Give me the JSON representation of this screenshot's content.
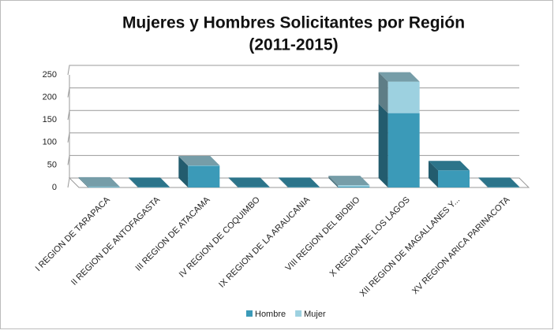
{
  "chart_data": {
    "type": "bar3d_stacked",
    "title": "Mujeres y Hombres Solicitantes por Región",
    "subtitle": "(2011-2015)",
    "categories": [
      "I REGION DE TARAPACA",
      "II REGION DE ANTOFAGASTA",
      "III REGION DE ATACAMA",
      "IV REGION DE COQUIMBO",
      "IX REGION DE LA ARAUCANIA",
      "VIII REGION DEL BIOBIO",
      "X REGION DE LOS LAGOS",
      "XII REGION DE MAGALLANES Y...",
      "XV REGION ARICA PARINACOTA"
    ],
    "series": [
      {
        "name": "Hombre",
        "color": "#3b9ab8",
        "values": [
          1,
          1,
          48,
          1,
          1,
          2,
          165,
          38,
          1
        ]
      },
      {
        "name": "Mujer",
        "color": "#9dd1e0",
        "values": [
          1,
          0,
          1,
          0,
          0,
          3,
          70,
          0,
          0
        ]
      }
    ],
    "ylim": [
      0,
      250
    ],
    "yticks": [
      0,
      50,
      100,
      150,
      200,
      250
    ],
    "grid": true,
    "legend": "bottom"
  }
}
